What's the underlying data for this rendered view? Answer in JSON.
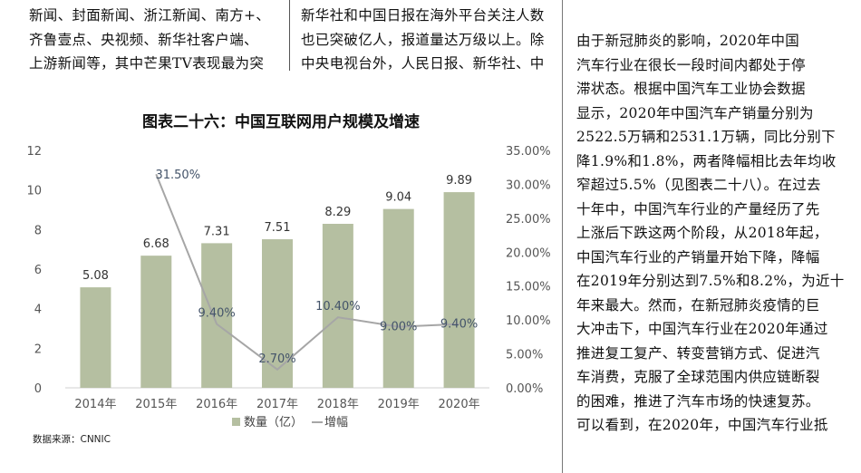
{
  "left_column": [
    "新闻、封面新闻、浙江新闻、南方+、",
    "齐鲁壹点、央视频、新华社客户端、",
    "上游新闻等，其中芒果TV表现最为突"
  ],
  "middle_column": [
    "新华社和中国日报在海外平台关注人数",
    "也已突破亿人，报道量达万级以上。除",
    "中央电视台外，人民日报、新华社、中"
  ],
  "right_column": [
    "由于新冠肺炎的影响，2020年中国",
    "汽车行业在很长一段时间内都处于停",
    "滞状态。根据中国汽车工业协会数据",
    "显示，2020年中国汽车产销量分别为",
    "2522.5万辆和2531.1万辆，同比分别下",
    "降1.9%和1.8%，两者降幅相比去年均收",
    "窄超过5.5%（见图表二十八）。在过去",
    "十年中，中国汽车行业的产量经历了先",
    "上涨后下跌这两个阶段，从2018年起，",
    "中国汽车行业的产销量开始下降，降幅",
    "在2019年分别达到7.5%和8.2%，为近十",
    "年来最大。然而，在新冠肺炎疫情的巨",
    "大冲击下，中国汽车行业在2020年通过",
    "推进复工复产、转变营销方式、促进汽",
    "车消费，克服了全球范围内供应链断裂",
    "的困难，推进了汽车市场的快速复苏。",
    "可以看到，在2020年，中国汽车行业抵"
  ],
  "source": "数据来源：CNNIC",
  "colors": {
    "bar": "#b5bfa1",
    "line": "#a6a6a6",
    "text": "#111111"
  },
  "chart_data": {
    "type": "bar",
    "title": "图表二十六：中国互联网用户规模及增速",
    "categories": [
      "2014年",
      "2015年",
      "2016年",
      "2017年",
      "2018年",
      "2019年",
      "2020年"
    ],
    "series": [
      {
        "name": "数量（亿）",
        "type": "bar",
        "axis": "left",
        "values": [
          5.08,
          6.68,
          7.31,
          7.51,
          8.29,
          9.04,
          9.89
        ],
        "labels": [
          "5.08",
          "6.68",
          "7.31",
          "7.51",
          "8.29",
          "9.04",
          "9.89"
        ]
      },
      {
        "name": "增幅",
        "type": "line",
        "axis": "right",
        "values": [
          null,
          31.5,
          9.4,
          2.7,
          10.4,
          9.0,
          9.4
        ],
        "labels": [
          "",
          "31.50%",
          "9.40%",
          "2.70%",
          "10.40%",
          "9.00%",
          "9.40%"
        ]
      }
    ],
    "y_left": {
      "min": 0,
      "max": 12,
      "ticks": [
        "0",
        "2",
        "4",
        "6",
        "8",
        "10",
        "12"
      ]
    },
    "y_right": {
      "min": 0,
      "max": 35,
      "ticks": [
        "0.00%",
        "5.00%",
        "10.00%",
        "15.00%",
        "20.00%",
        "25.00%",
        "30.00%",
        "35.00%"
      ]
    },
    "legend_position": "bottom",
    "grid": false
  }
}
